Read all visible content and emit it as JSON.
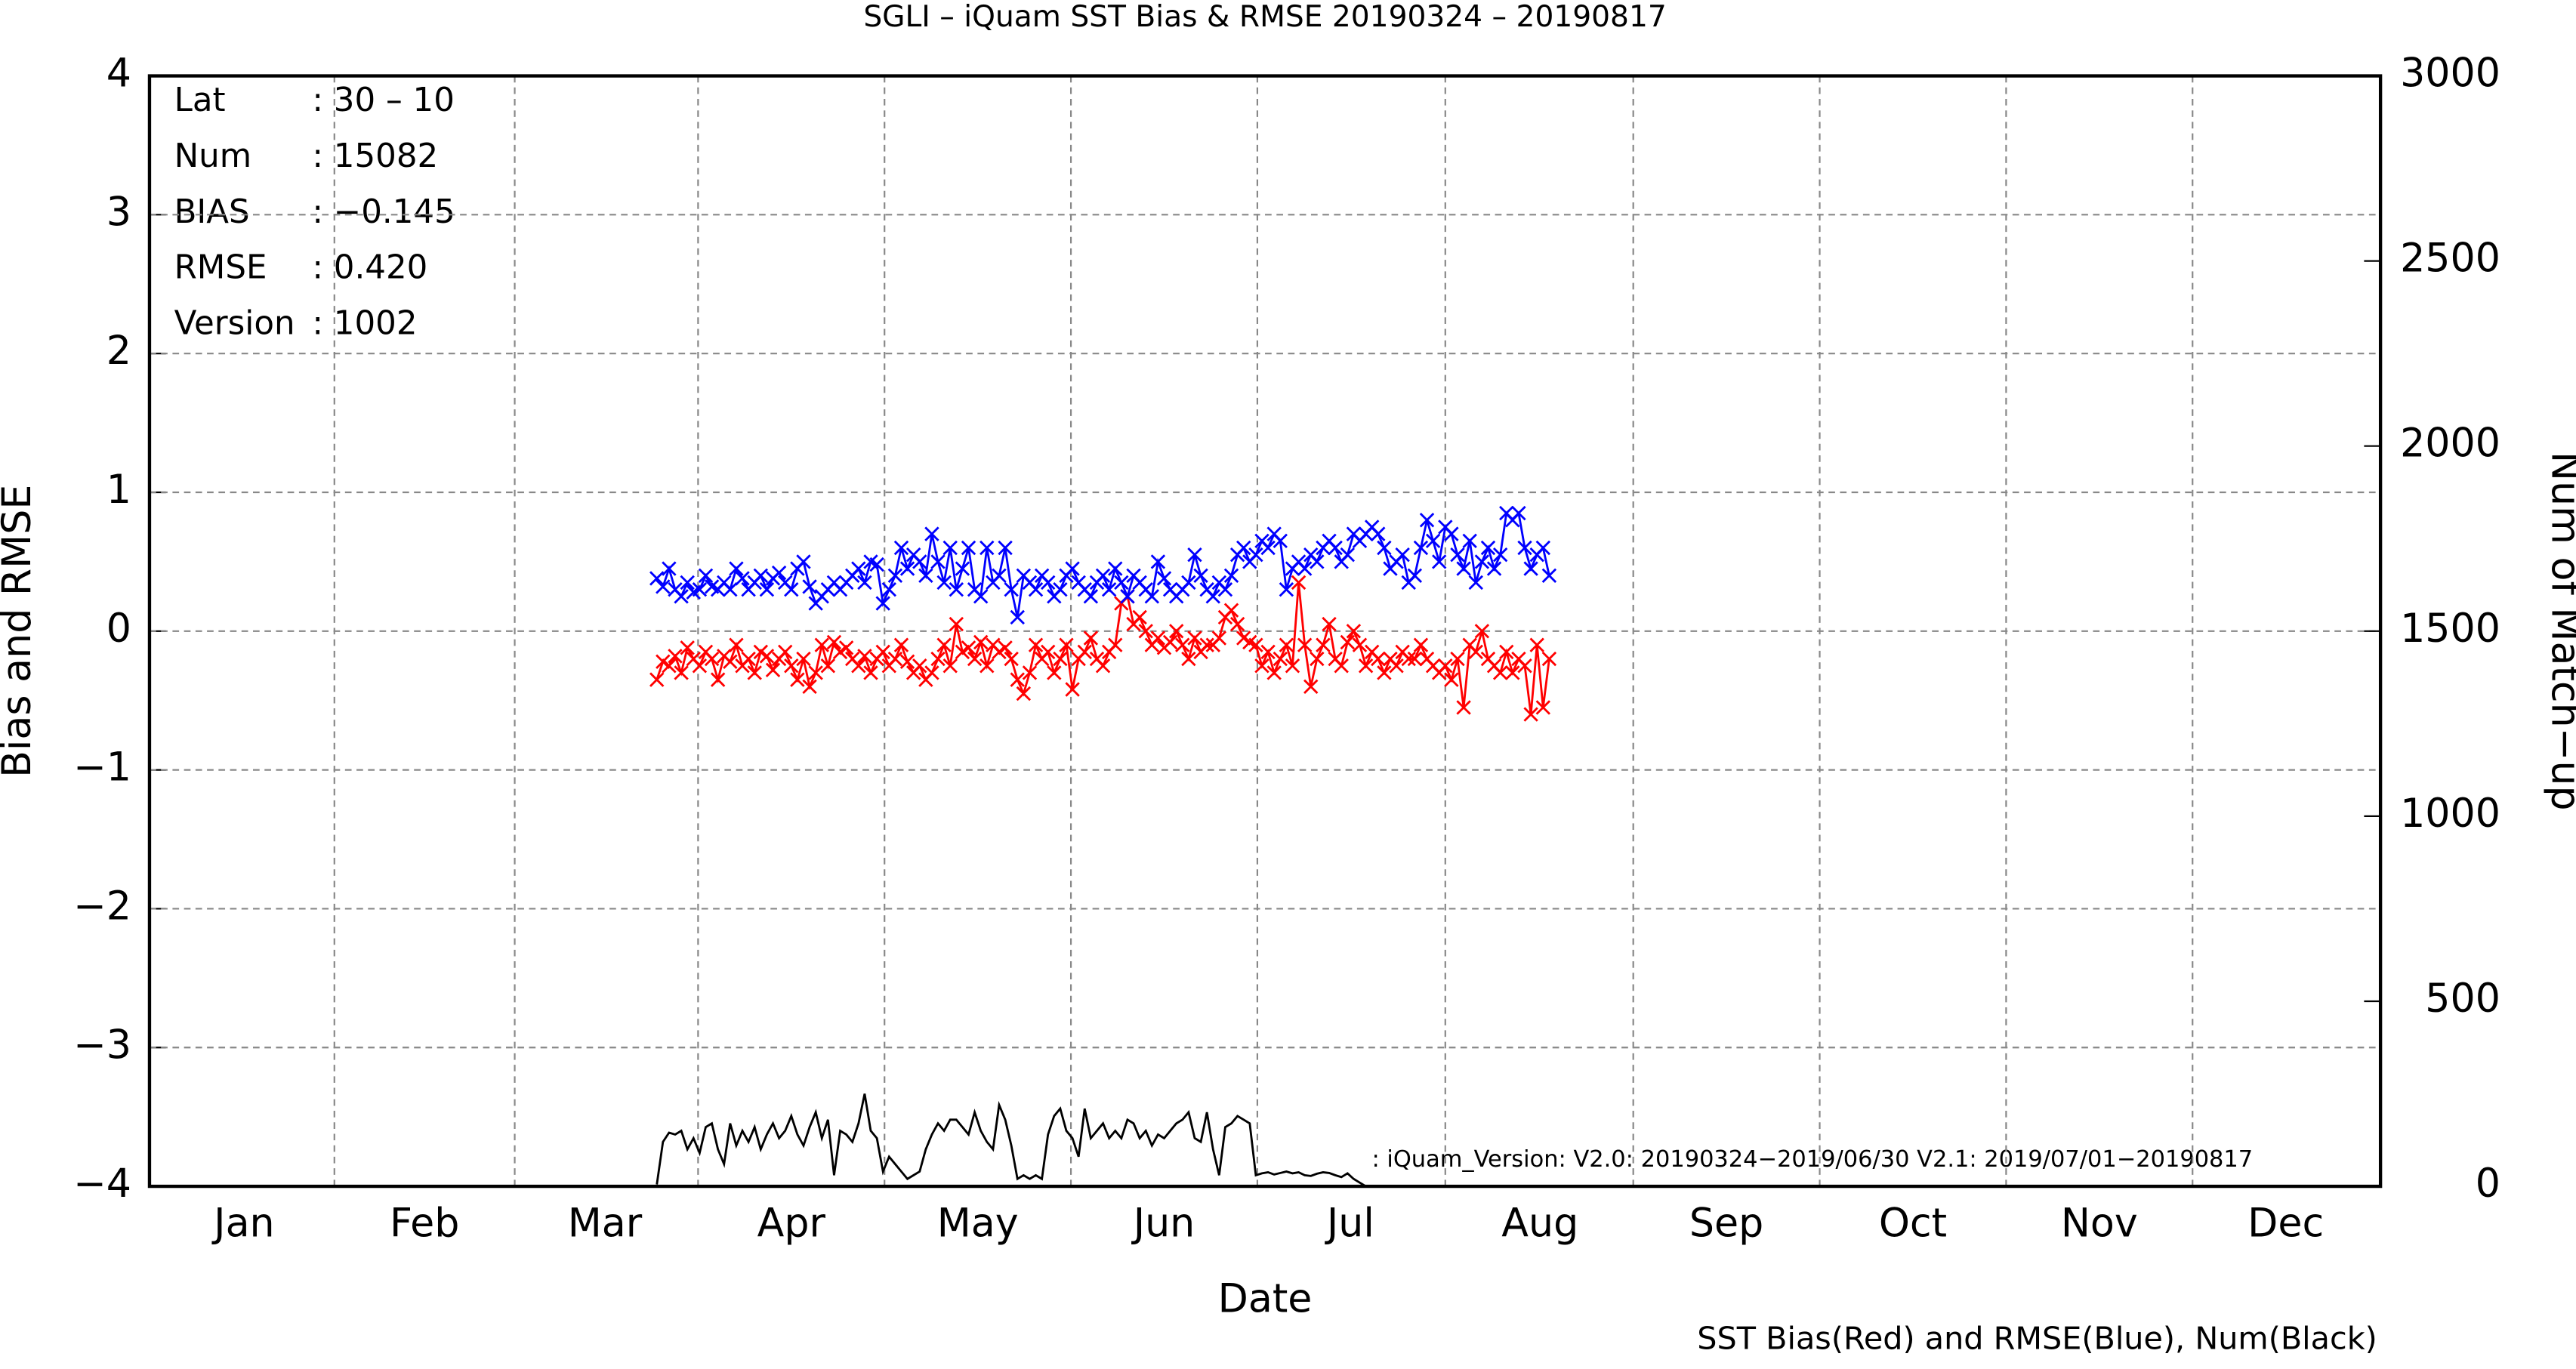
{
  "chart_data": {
    "type": "line",
    "title": "SGLI – iQuam  SST Bias & RMSE 20190324 – 20190817",
    "xlabel": "Date",
    "ylabel": "Bias and RMSE",
    "y2label": "Num of Match−up",
    "footer": "SST Bias(Red) and RMSE(Blue), Num(Black)",
    "annotation": ": iQuam_Version: V2.0: 20190324−2019/06/30 V2.1: 2019/07/01−20190817",
    "stats": [
      [
        "Lat",
        ": 30 – 10"
      ],
      [
        "Num",
        ": 15082"
      ],
      [
        "BIAS",
        ": −0.145"
      ],
      [
        "RMSE",
        ": 0.420"
      ],
      [
        "Version",
        ": 1002"
      ]
    ],
    "grid": true,
    "xlim": [
      0,
      365
    ],
    "xticks": [
      {
        "value": 15.5,
        "label": "Jan"
      },
      {
        "value": 45,
        "label": "Feb"
      },
      {
        "value": 74.5,
        "label": "Mar"
      },
      {
        "value": 105,
        "label": "Apr"
      },
      {
        "value": 135.5,
        "label": "May"
      },
      {
        "value": 166,
        "label": "Jun"
      },
      {
        "value": 196.5,
        "label": "Jul"
      },
      {
        "value": 227.5,
        "label": "Aug"
      },
      {
        "value": 258,
        "label": "Sep"
      },
      {
        "value": 288.5,
        "label": "Oct"
      },
      {
        "value": 319,
        "label": "Nov"
      },
      {
        "value": 349.5,
        "label": "Dec"
      }
    ],
    "ylim": [
      -4,
      4
    ],
    "yticks": [
      {
        "value": -4,
        "label": "−4"
      },
      {
        "value": -3,
        "label": "−3"
      },
      {
        "value": -2,
        "label": "−2"
      },
      {
        "value": -1,
        "label": "−1"
      },
      0,
      1,
      2,
      3,
      4
    ],
    "y2lim": [
      0,
      3000
    ],
    "y2ticks": [
      0,
      500,
      1000,
      1500,
      2000,
      2500,
      3000
    ],
    "x": [
      83,
      84,
      85,
      86,
      87,
      88,
      89,
      90,
      91,
      92,
      93,
      94,
      95,
      96,
      97,
      98,
      99,
      100,
      101,
      102,
      103,
      104,
      105,
      106,
      107,
      108,
      109,
      110,
      111,
      112,
      113,
      114,
      115,
      116,
      117,
      118,
      119,
      120,
      121,
      122,
      123,
      124,
      125,
      126,
      127,
      128,
      129,
      130,
      131,
      132,
      133,
      134,
      135,
      136,
      137,
      138,
      139,
      140,
      141,
      142,
      143,
      144,
      145,
      146,
      147,
      148,
      149,
      150,
      151,
      152,
      153,
      154,
      155,
      156,
      157,
      158,
      159,
      160,
      161,
      162,
      163,
      164,
      165,
      166,
      167,
      168,
      169,
      170,
      171,
      172,
      173,
      174,
      175,
      176,
      177,
      178,
      179,
      180,
      181,
      182,
      183,
      184,
      185,
      186,
      187,
      188,
      189,
      190,
      191,
      192,
      193,
      194,
      195,
      196,
      197,
      198,
      199,
      200,
      201,
      202,
      203,
      204,
      205,
      206,
      207,
      208,
      209,
      210,
      211,
      212,
      213,
      214,
      215,
      216,
      217,
      218,
      219,
      220,
      221,
      222,
      223,
      224,
      225,
      226,
      227,
      228,
      229
    ],
    "series": [
      {
        "color": "#ff0000",
        "marker": "x",
        "values": [
          -0.35,
          -0.22,
          -0.25,
          -0.18,
          -0.3,
          -0.12,
          -0.2,
          -0.25,
          -0.15,
          -0.2,
          -0.35,
          -0.18,
          -0.22,
          -0.1,
          -0.25,
          -0.2,
          -0.3,
          -0.15,
          -0.18,
          -0.28,
          -0.2,
          -0.15,
          -0.25,
          -0.35,
          -0.2,
          -0.4,
          -0.3,
          -0.1,
          -0.25,
          -0.08,
          -0.15,
          -0.12,
          -0.2,
          -0.25,
          -0.18,
          -0.3,
          -0.2,
          -0.15,
          -0.25,
          -0.2,
          -0.1,
          -0.22,
          -0.3,
          -0.25,
          -0.35,
          -0.3,
          -0.2,
          -0.1,
          -0.25,
          0.05,
          -0.15,
          -0.12,
          -0.2,
          -0.08,
          -0.25,
          -0.1,
          -0.15,
          -0.12,
          -0.2,
          -0.35,
          -0.45,
          -0.3,
          -0.1,
          -0.2,
          -0.15,
          -0.3,
          -0.2,
          -0.1,
          -0.42,
          -0.2,
          -0.15,
          -0.05,
          -0.2,
          -0.25,
          -0.15,
          -0.1,
          0.2,
          0.25,
          0.05,
          0.1,
          0.0,
          -0.1,
          -0.05,
          -0.12,
          -0.08,
          0.0,
          -0.1,
          -0.2,
          -0.05,
          -0.15,
          -0.1,
          -0.1,
          -0.05,
          0.1,
          0.15,
          0.05,
          -0.05,
          -0.08,
          -0.1,
          -0.25,
          -0.15,
          -0.3,
          -0.2,
          -0.1,
          -0.25,
          0.35,
          -0.1,
          -0.4,
          -0.2,
          -0.1,
          0.05,
          -0.2,
          -0.25,
          -0.08,
          0.0,
          -0.1,
          -0.25,
          -0.15,
          -0.2,
          -0.3,
          -0.2,
          -0.25,
          -0.15,
          -0.2,
          -0.2,
          -0.1,
          -0.2,
          -0.25,
          -0.3,
          -0.25,
          -0.35,
          -0.2,
          -0.55,
          -0.1,
          -0.15,
          0.0,
          -0.2,
          -0.25,
          -0.3,
          -0.15,
          -0.3,
          -0.2,
          -0.25,
          -0.6,
          -0.1,
          -0.55,
          -0.2
        ]
      },
      {
        "color": "#0000ff",
        "marker": "x",
        "values": [
          0.38,
          0.32,
          0.45,
          0.3,
          0.25,
          0.35,
          0.28,
          0.3,
          0.4,
          0.32,
          0.3,
          0.35,
          0.3,
          0.45,
          0.38,
          0.3,
          0.35,
          0.4,
          0.3,
          0.38,
          0.42,
          0.35,
          0.3,
          0.45,
          0.5,
          0.32,
          0.2,
          0.25,
          0.3,
          0.35,
          0.3,
          0.35,
          0.4,
          0.45,
          0.35,
          0.5,
          0.48,
          0.2,
          0.3,
          0.4,
          0.6,
          0.45,
          0.55,
          0.5,
          0.4,
          0.7,
          0.5,
          0.35,
          0.6,
          0.3,
          0.45,
          0.6,
          0.3,
          0.25,
          0.6,
          0.35,
          0.4,
          0.6,
          0.3,
          0.1,
          0.4,
          0.35,
          0.3,
          0.4,
          0.35,
          0.25,
          0.3,
          0.4,
          0.45,
          0.35,
          0.3,
          0.25,
          0.35,
          0.4,
          0.3,
          0.45,
          0.35,
          0.25,
          0.4,
          0.35,
          0.3,
          0.25,
          0.5,
          0.38,
          0.3,
          0.25,
          0.3,
          0.35,
          0.55,
          0.4,
          0.3,
          0.25,
          0.35,
          0.3,
          0.4,
          0.55,
          0.6,
          0.5,
          0.55,
          0.65,
          0.6,
          0.7,
          0.65,
          0.3,
          0.45,
          0.5,
          0.45,
          0.55,
          0.5,
          0.6,
          0.65,
          0.6,
          0.5,
          0.55,
          0.7,
          0.65,
          0.7,
          0.75,
          0.7,
          0.6,
          0.45,
          0.5,
          0.55,
          0.35,
          0.4,
          0.6,
          0.8,
          0.65,
          0.5,
          0.75,
          0.7,
          0.55,
          0.45,
          0.65,
          0.35,
          0.5,
          0.6,
          0.45,
          0.55,
          0.85,
          0.8,
          0.85,
          0.6,
          0.45,
          0.55,
          0.6,
          0.4
        ]
      },
      {
        "color": "#000000",
        "axis": "y2",
        "values": [
          5,
          120,
          145,
          140,
          150,
          100,
          130,
          90,
          160,
          170,
          100,
          60,
          170,
          110,
          150,
          120,
          160,
          100,
          140,
          170,
          130,
          150,
          190,
          140,
          110,
          160,
          200,
          130,
          180,
          30,
          150,
          140,
          120,
          170,
          250,
          150,
          130,
          40,
          80,
          60,
          40,
          20,
          30,
          40,
          100,
          140,
          170,
          150,
          180,
          180,
          160,
          140,
          200,
          150,
          120,
          100,
          220,
          180,
          110,
          20,
          30,
          20,
          30,
          20,
          140,
          190,
          210,
          150,
          130,
          80,
          210,
          130,
          150,
          170,
          130,
          150,
          130,
          180,
          170,
          130,
          150,
          110,
          140,
          130,
          150,
          170,
          180,
          200,
          130,
          120,
          200,
          100,
          30,
          160,
          170,
          190,
          180,
          170,
          30,
          35,
          38,
          32,
          36,
          40,
          35,
          38,
          30,
          28,
          34,
          38,
          36,
          30,
          25,
          35,
          20,
          10,
          0,
          0,
          0,
          0,
          0,
          0,
          0,
          0,
          0,
          0,
          0,
          0,
          0,
          0,
          0,
          0,
          0,
          0,
          0,
          0,
          0,
          0,
          0,
          0,
          0,
          0,
          0,
          0,
          0,
          0,
          0
        ]
      }
    ]
  }
}
